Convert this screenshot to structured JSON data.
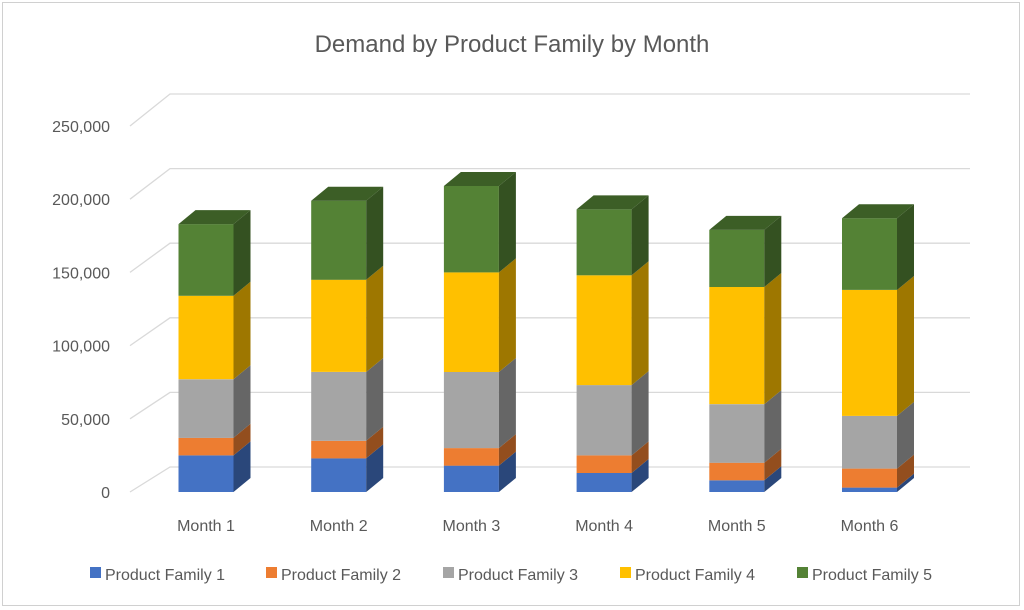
{
  "chart_data": {
    "type": "bar",
    "stacked": true,
    "three_d": true,
    "title": "Demand by Product Family by Month",
    "xlabel": "",
    "ylabel": "",
    "categories": [
      "Month 1",
      "Month 2",
      "Month 3",
      "Month 4",
      "Month 5",
      "Month 6"
    ],
    "ylim": [
      0,
      250000
    ],
    "yticks": [
      0,
      50000,
      100000,
      150000,
      200000,
      250000
    ],
    "ytick_labels": [
      "0",
      "50,000",
      "100,000",
      "150,000",
      "200,000",
      "250,000"
    ],
    "grid": true,
    "legend_position": "bottom",
    "series": [
      {
        "name": "Product Family 1",
        "color": "#4472C4",
        "values": [
          25000,
          23000,
          18000,
          13000,
          8000,
          3000
        ]
      },
      {
        "name": "Product Family 2",
        "color": "#ED7D31",
        "values": [
          12000,
          12000,
          12000,
          12000,
          12000,
          13000
        ]
      },
      {
        "name": "Product Family 3",
        "color": "#A5A5A5",
        "values": [
          40000,
          47000,
          52000,
          48000,
          40000,
          36000
        ]
      },
      {
        "name": "Product Family 4",
        "color": "#FFC000",
        "values": [
          57000,
          63000,
          68000,
          75000,
          80000,
          86000
        ]
      },
      {
        "name": "Product Family 5",
        "color": "#548235",
        "values": [
          49000,
          54000,
          59000,
          45000,
          39000,
          49000
        ]
      }
    ]
  }
}
